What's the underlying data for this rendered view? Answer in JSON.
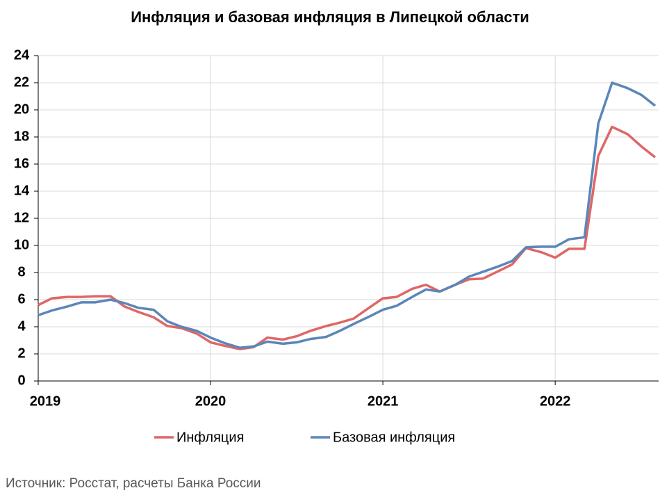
{
  "chart_data": {
    "type": "line",
    "title": "Инфляция и базовая инфляция в Липецкой области",
    "source": "Источник: Росстат, расчеты Банка России",
    "x": [
      2019,
      2019.08,
      2019.17,
      2019.25,
      2019.33,
      2019.42,
      2019.5,
      2019.58,
      2019.67,
      2019.75,
      2019.83,
      2019.92,
      2020,
      2020.08,
      2020.17,
      2020.25,
      2020.33,
      2020.42,
      2020.5,
      2020.58,
      2020.67,
      2020.75,
      2020.83,
      2020.92,
      2021,
      2021.08,
      2021.17,
      2021.25,
      2021.33,
      2021.42,
      2021.5,
      2021.58,
      2021.67,
      2021.75,
      2021.83,
      2021.92,
      2022,
      2022.08,
      2022.17,
      2022.25,
      2022.33,
      2022.42,
      2022.5,
      2022.58
    ],
    "series": [
      {
        "name": "Инфляция",
        "color": "#e06666",
        "values": [
          5.6,
          6.1,
          6.2,
          6.2,
          6.25,
          6.25,
          5.5,
          5.1,
          4.7,
          4.05,
          3.9,
          3.5,
          2.85,
          2.6,
          2.35,
          2.5,
          3.2,
          3.05,
          3.3,
          3.7,
          4.05,
          4.3,
          4.6,
          5.4,
          6.1,
          6.2,
          6.8,
          7.1,
          6.6,
          7.1,
          7.5,
          7.55,
          8.1,
          8.6,
          9.8,
          9.5,
          9.1,
          9.75,
          9.75,
          16.6,
          18.75,
          18.2,
          17.3,
          16.5
        ]
      },
      {
        "name": "Базовая инфляция",
        "color": "#5b86b8",
        "values": [
          4.85,
          5.2,
          5.5,
          5.8,
          5.8,
          6.0,
          5.75,
          5.4,
          5.25,
          4.4,
          4.0,
          3.7,
          3.2,
          2.8,
          2.45,
          2.55,
          2.9,
          2.75,
          2.85,
          3.1,
          3.25,
          3.7,
          4.2,
          4.75,
          5.25,
          5.55,
          6.2,
          6.75,
          6.6,
          7.1,
          7.7,
          8.05,
          8.45,
          8.85,
          9.85,
          9.9,
          9.9,
          10.45,
          10.6,
          19.0,
          22.0,
          21.6,
          21.1,
          20.3
        ]
      }
    ],
    "xlim": [
      2019,
      2022.6
    ],
    "xticks": [
      2019,
      2020,
      2021,
      2022
    ],
    "ylim": [
      0,
      24
    ],
    "yticks": [
      0,
      2,
      4,
      6,
      8,
      10,
      12,
      14,
      16,
      18,
      20,
      22,
      24
    ],
    "grid": true,
    "legend": "bottom"
  }
}
